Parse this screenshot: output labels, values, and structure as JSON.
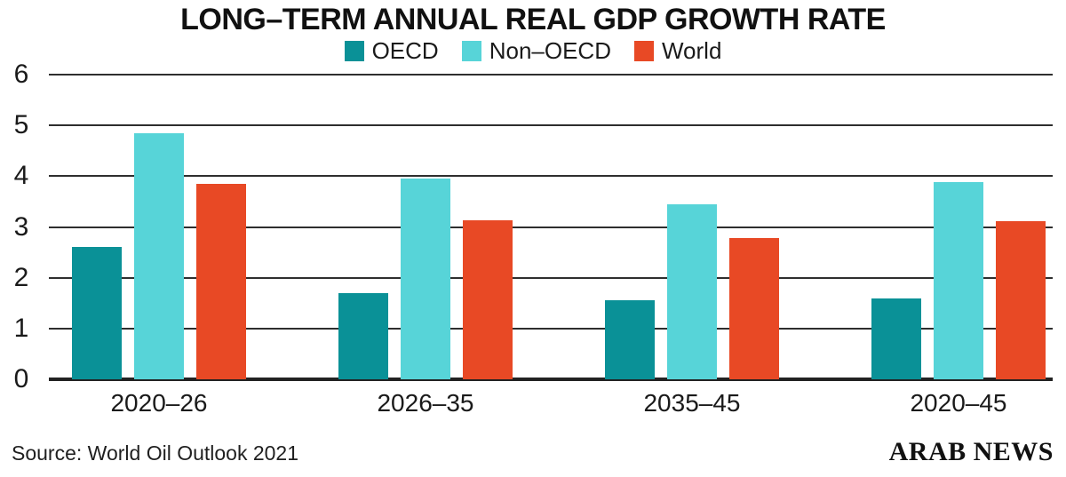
{
  "title": "LONG–TERM ANNUAL REAL GDP GROWTH RATE",
  "source": "Source: World Oil Outlook 2021",
  "brand": "ARAB NEWS",
  "colors": {
    "oecd": "#0a9197",
    "non_oecd": "#57d4d8",
    "world": "#e84925",
    "grid": "#2e2e2e",
    "text": "#1a1a1a"
  },
  "chart_data": {
    "type": "bar",
    "title": "LONG–TERM ANNUAL REAL GDP GROWTH RATE",
    "categories": [
      "2020–26",
      "2026–35",
      "2035–45",
      "2020–45"
    ],
    "series": [
      {
        "name": "OECD",
        "color": "#0a9197",
        "values": [
          2.6,
          1.7,
          1.55,
          1.6
        ]
      },
      {
        "name": "Non–OECD",
        "color": "#57d4d8",
        "values": [
          4.85,
          3.95,
          3.45,
          3.88
        ]
      },
      {
        "name": "World",
        "color": "#e84925",
        "values": [
          3.85,
          3.13,
          2.78,
          3.12
        ]
      }
    ],
    "xlabel": "",
    "ylabel": "",
    "ylim": [
      0,
      6
    ],
    "yticks": [
      0,
      1,
      2,
      3,
      4,
      5,
      6
    ],
    "grid": true,
    "legend_position": "top"
  }
}
